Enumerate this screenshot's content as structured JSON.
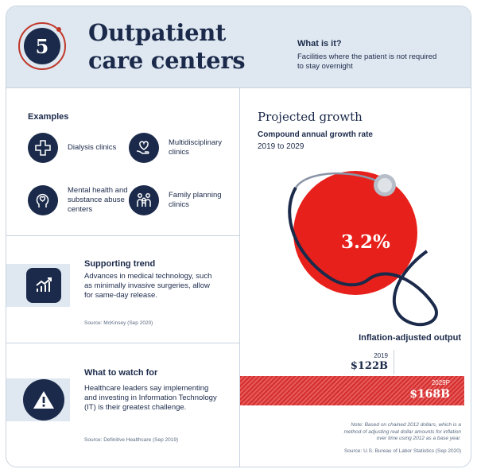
{
  "header": {
    "number": "5",
    "title_line1": "Outpatient",
    "title_line2": "care centers",
    "whatis_heading": "What is it?",
    "whatis_text": "Facilities where the patient is not required to stay overnight"
  },
  "examples": {
    "heading": "Examples",
    "items": [
      {
        "label": "Dialysis clinics",
        "icon": "dialysis-icon"
      },
      {
        "label": "Multidisciplinary clinics",
        "icon": "heart-hand-icon"
      },
      {
        "label": "Mental health and substance abuse centers",
        "icon": "head-heart-icon"
      },
      {
        "label": "Family planning clinics",
        "icon": "family-icon"
      }
    ]
  },
  "trend": {
    "heading": "Supporting trend",
    "text": "Advances in medical technology, such as minimally invasive surgeries, allow for same-day release.",
    "source": "Source: McKinsey (Sep 2020)",
    "icon": "growth-chart-icon"
  },
  "watch": {
    "heading": "What to watch for",
    "text": "Healthcare leaders say implementing and investing in Information Technology (IT) is their greatest challenge.",
    "source": "Source:  Definitive Healthcare (Sep 2019)",
    "icon": "warning-icon"
  },
  "growth": {
    "heading": "Projected growth",
    "cagr_label": "Compound annual growth rate",
    "years": "2019 to 2029",
    "value": "3.2%",
    "icon": "stethoscope-icon",
    "colors": {
      "circle": "#e8201b",
      "navy": "#1b2a4a"
    }
  },
  "output": {
    "heading": "Inflation-adjusted output",
    "bar2019_year": "2019",
    "bar2019_value": "$122B",
    "bar2029_year": "2029P",
    "bar2029_value": "$168B",
    "note": "Note: Based on chained 2012 dollars, which is a method of adjusting real dollar amounts for inflation over time using 2012 as a base year.",
    "source": "Source: U.S. Bureau of Labor Statistics (Sep 2020)"
  }
}
